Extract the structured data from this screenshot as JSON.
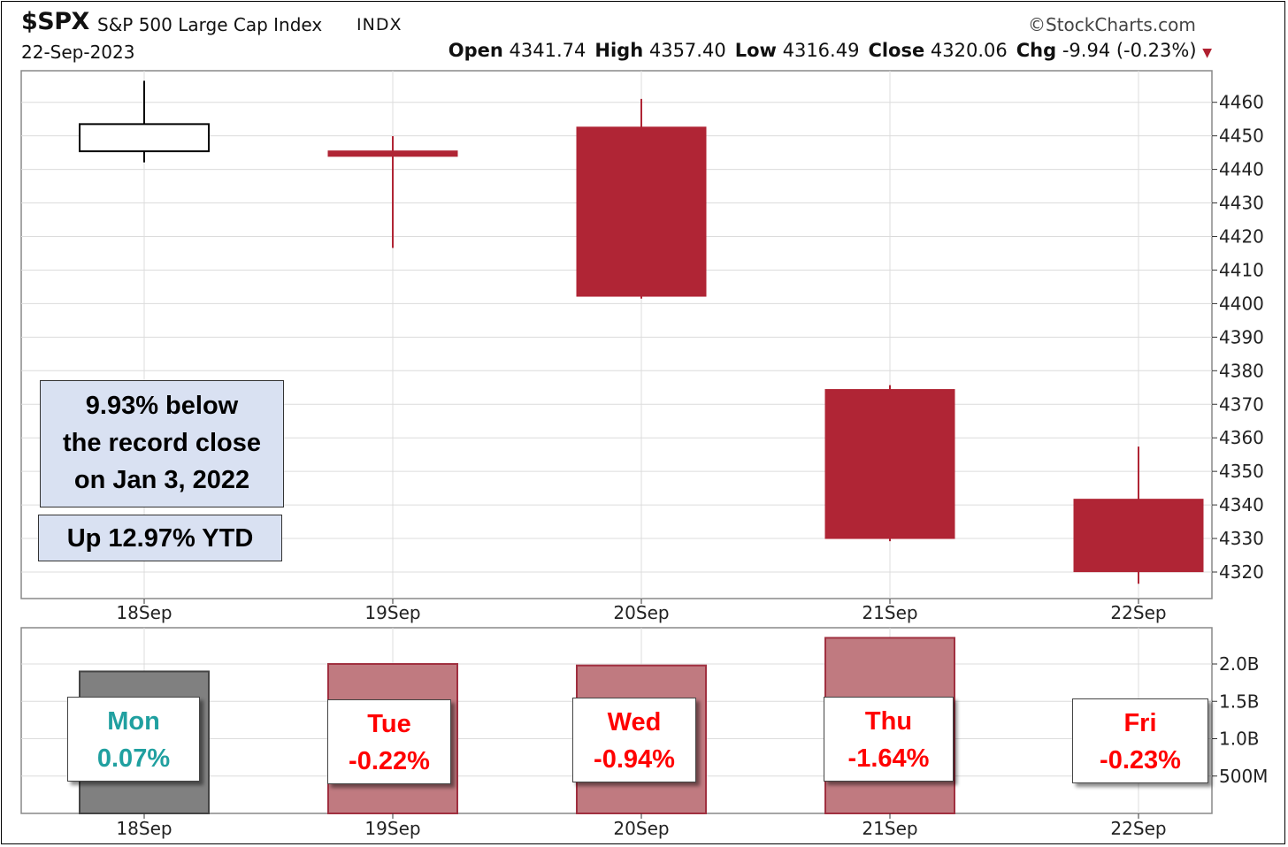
{
  "header": {
    "symbol": "$SPX",
    "name": "S&P 500 Large Cap Index",
    "exchange": "INDX",
    "brand": "©StockCharts.com",
    "date": "22-Sep-2023",
    "open_label": "Open",
    "open": "4341.74",
    "high_label": "High",
    "high": "4357.40",
    "low_label": "Low",
    "low": "4316.49",
    "close_label": "Close",
    "close": "4320.06",
    "chg_label": "Chg",
    "chg": "-9.94 (-0.23%)"
  },
  "colors": {
    "down": "#b02535",
    "up_outline": "#000000",
    "volume_up": "#808080",
    "volume_down": "#c07a80",
    "weekday_up": "#20a0a0",
    "weekday_down": "#ff0000",
    "note_bg": "#d9e1f2"
  },
  "annotations": {
    "record": [
      "9.93% below",
      "the record close",
      "on Jan 3, 2022"
    ],
    "ytd": "Up 12.97% YTD"
  },
  "weekdays": [
    {
      "day": "Mon",
      "pct": "0.07%",
      "direction": "up"
    },
    {
      "day": "Tue",
      "pct": "-0.22%",
      "direction": "down"
    },
    {
      "day": "Wed",
      "pct": "-0.94%",
      "direction": "down"
    },
    {
      "day": "Thu",
      "pct": "-1.64%",
      "direction": "down"
    },
    {
      "day": "Fri",
      "pct": "-0.23%",
      "direction": "down"
    }
  ],
  "chart_data": [
    {
      "type": "candlestick",
      "categories": [
        "18Sep",
        "19Sep",
        "20Sep",
        "21Sep",
        "22Sep"
      ],
      "series": [
        {
          "open": 4445.4,
          "high": 4466.4,
          "low": 4442.1,
          "close": 4453.5
        },
        {
          "open": 4445.5,
          "high": 4449.9,
          "low": 4416.6,
          "close": 4443.9
        },
        {
          "open": 4452.6,
          "high": 4461.0,
          "low": 4401.5,
          "close": 4402.2
        },
        {
          "open": 4374.4,
          "high": 4375.7,
          "low": 4329.2,
          "close": 4330.0
        },
        {
          "open": 4341.7,
          "high": 4357.4,
          "low": 4316.5,
          "close": 4320.1
        }
      ],
      "yticks": [
        4320,
        4330,
        4340,
        4350,
        4360,
        4370,
        4380,
        4390,
        4400,
        4410,
        4420,
        4430,
        4440,
        4450,
        4460
      ],
      "ylim": [
        4310,
        4470
      ],
      "grid": true
    },
    {
      "type": "bar",
      "categories": [
        "18Sep",
        "19Sep",
        "20Sep",
        "21Sep",
        "22Sep"
      ],
      "values": [
        1.9,
        2.0,
        1.98,
        2.35,
        0
      ],
      "colors": [
        "#808080",
        "#c07a80",
        "#c07a80",
        "#c07a80",
        "#c07a80"
      ],
      "yticks": [
        0.5,
        1.0,
        1.5,
        2.0
      ],
      "ytick_labels": [
        "500M",
        "1.0B",
        "1.5B",
        "2.0B"
      ],
      "ylim": [
        0,
        2.5
      ],
      "grid": true
    }
  ]
}
